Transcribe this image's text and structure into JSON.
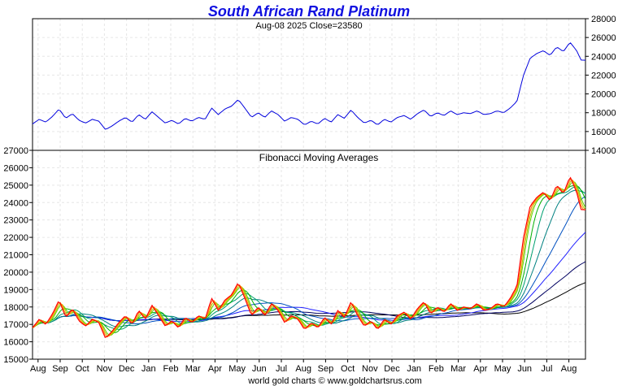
{
  "chart_data": [
    {
      "type": "line",
      "title": "South African Rand Platinum",
      "subtitle": "Aug-08  2025   Close=23580",
      "y_axis_position": "right",
      "ylim": [
        14000,
        28000
      ],
      "y_ticks": [
        "14000",
        "16000",
        "18000",
        "20000",
        "22000",
        "24000",
        "26000",
        "28000"
      ],
      "grid": true,
      "series": [
        {
          "color": "#0000dd",
          "x": [
            0,
            0.3,
            0.6,
            0.9,
            1.2,
            1.5,
            1.8,
            2.1,
            2.4,
            2.7,
            3.0,
            3.3,
            3.6,
            3.9,
            4.2,
            4.5,
            4.8,
            5.1,
            5.4,
            5.7,
            6.0,
            6.3,
            6.6,
            6.9,
            7.2,
            7.5,
            7.8,
            8.1,
            8.4,
            8.7,
            9.0,
            9.3,
            9.6,
            9.9,
            10.2,
            10.5,
            10.8,
            11.1,
            11.4,
            11.7,
            12.0,
            12.3,
            12.6,
            12.9,
            13.2,
            13.5,
            13.8,
            14.1,
            14.4,
            14.7,
            15.0,
            15.3,
            15.6,
            15.9,
            16.2,
            16.5,
            16.8,
            17.1,
            17.4,
            17.7,
            18.0,
            18.3,
            18.6,
            18.9,
            19.2,
            19.5,
            19.8,
            20.1,
            20.4,
            20.7,
            21.0,
            21.3,
            21.6,
            21.9,
            22.2,
            22.5,
            22.8,
            23.1,
            23.4,
            23.7,
            24.0,
            24.3,
            24.6,
            24.8,
            25.0
          ],
          "values": [
            16800,
            17300,
            17000,
            17600,
            18400,
            17400,
            17900,
            17200,
            16900,
            17300,
            17100,
            16200,
            16600,
            17100,
            17500,
            17000,
            17800,
            17300,
            18100,
            17500,
            16900,
            17200,
            16800,
            17400,
            17100,
            17500,
            17300,
            18500,
            17800,
            18400,
            18700,
            19400,
            18500,
            17500,
            18000,
            17500,
            18200,
            17800,
            17100,
            17500,
            17300,
            16700,
            17100,
            16800,
            17400,
            17000,
            17800,
            17400,
            18300,
            17500,
            16900,
            17200,
            16700,
            17300,
            17000,
            17500,
            17700,
            17300,
            17900,
            18300,
            17600,
            18000,
            17700,
            18200,
            17800,
            18000,
            17900,
            18200,
            17800,
            17900,
            18200,
            18000,
            18500,
            19200,
            22000,
            23800,
            24300,
            24600,
            24100,
            25000,
            24500,
            25500,
            24600,
            23600,
            23580
          ]
        }
      ]
    },
    {
      "type": "line",
      "title": "Fibonacci Moving Averages",
      "y_axis_position": "left",
      "ylim": [
        15000,
        27000
      ],
      "y_ticks": [
        "15000",
        "16000",
        "17000",
        "18000",
        "19000",
        "20000",
        "21000",
        "22000",
        "23000",
        "24000",
        "25000",
        "26000",
        "27000"
      ],
      "x_tick_labels": [
        "Aug",
        "Sep",
        "Oct",
        "Nov",
        "Dec",
        "Jan",
        "Feb",
        "Mar",
        "Apr",
        "May",
        "Jun",
        "Jul",
        "Aug",
        "Sep",
        "Oct",
        "Nov",
        "Dec",
        "Jan",
        "Feb",
        "Mar",
        "Apr",
        "May",
        "Jun",
        "Jul",
        "Aug"
      ],
      "grid": true,
      "series": [
        {
          "color": "#ff0000",
          "x": [
            0,
            0.3,
            0.6,
            0.9,
            1.2,
            1.5,
            1.8,
            2.1,
            2.4,
            2.7,
            3.0,
            3.3,
            3.6,
            3.9,
            4.2,
            4.5,
            4.8,
            5.1,
            5.4,
            5.7,
            6.0,
            6.3,
            6.6,
            6.9,
            7.2,
            7.5,
            7.8,
            8.1,
            8.4,
            8.7,
            9.0,
            9.3,
            9.6,
            9.9,
            10.2,
            10.5,
            10.8,
            11.1,
            11.4,
            11.7,
            12.0,
            12.3,
            12.6,
            12.9,
            13.2,
            13.5,
            13.8,
            14.1,
            14.4,
            14.7,
            15.0,
            15.3,
            15.6,
            15.9,
            16.2,
            16.5,
            16.8,
            17.1,
            17.4,
            17.7,
            18.0,
            18.3,
            18.6,
            18.9,
            19.2,
            19.5,
            19.8,
            20.1,
            20.4,
            20.7,
            21.0,
            21.3,
            21.6,
            21.9,
            22.2,
            22.5,
            22.8,
            23.1,
            23.4,
            23.7,
            24.0,
            24.3,
            24.6,
            24.8,
            25.0
          ],
          "values": [
            16800,
            17300,
            17000,
            17600,
            18400,
            17400,
            17900,
            17200,
            16900,
            17300,
            17100,
            16200,
            16600,
            17100,
            17500,
            17000,
            17800,
            17300,
            18100,
            17500,
            16900,
            17200,
            16800,
            17400,
            17100,
            17500,
            17300,
            18500,
            17800,
            18400,
            18700,
            19400,
            18500,
            17500,
            18000,
            17500,
            18200,
            17800,
            17100,
            17500,
            17300,
            16700,
            17100,
            16800,
            17400,
            17000,
            17800,
            17400,
            18300,
            17500,
            16900,
            17200,
            16700,
            17300,
            17000,
            17500,
            17700,
            17300,
            17900,
            18300,
            17600,
            18000,
            17700,
            18200,
            17800,
            18000,
            17900,
            18200,
            17800,
            17900,
            18200,
            18000,
            18500,
            19200,
            22000,
            23800,
            24300,
            24600,
            24100,
            25000,
            24500,
            25500,
            24600,
            23600,
            23580
          ]
        },
        {
          "color": "#ff8000",
          "smoothing_window": 3
        },
        {
          "color": "#c0c000",
          "smoothing_window": 5
        },
        {
          "color": "#60d000",
          "smoothing_window": 8
        },
        {
          "color": "#00b000",
          "smoothing_window": 13
        },
        {
          "color": "#00a070",
          "smoothing_window": 21
        },
        {
          "color": "#008080",
          "smoothing_window": 34
        },
        {
          "color": "#0050c0",
          "smoothing_window": 55
        },
        {
          "color": "#2020ff",
          "smoothing_window": 89
        },
        {
          "color": "#000060",
          "smoothing_window": 144
        },
        {
          "color": "#000000",
          "smoothing_window": 233
        }
      ]
    }
  ],
  "footer": "world gold charts © www.goldchartsrus.com"
}
